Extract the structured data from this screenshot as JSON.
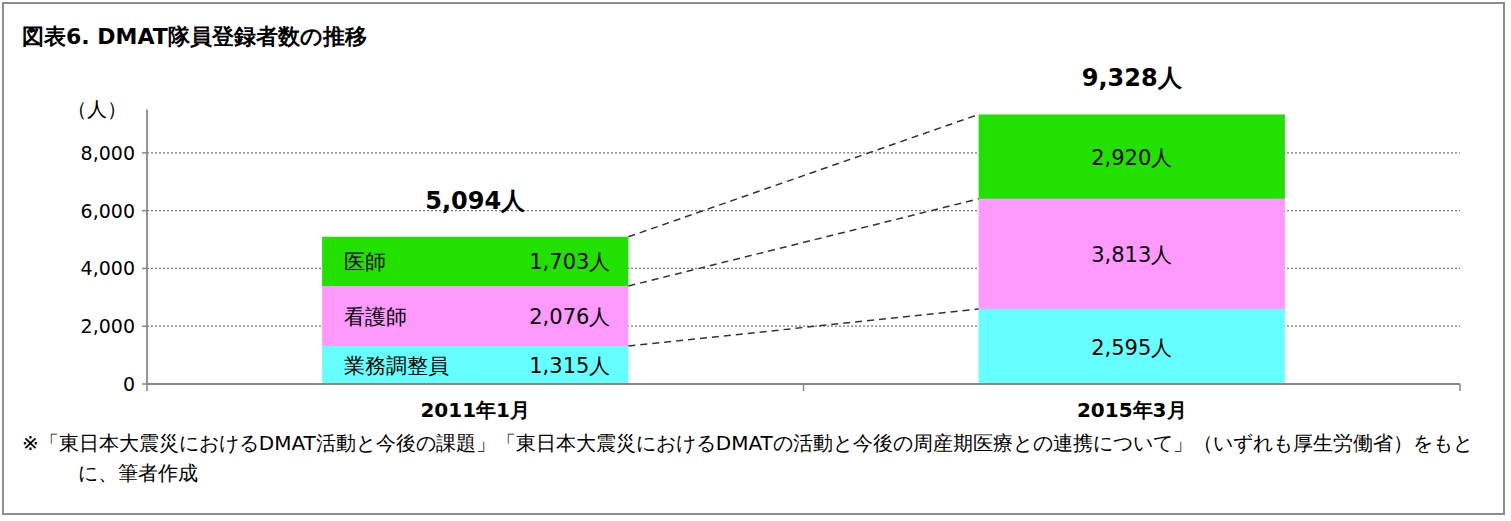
{
  "chart_data": {
    "type": "bar",
    "title": "図表6. DMAT隊員登録者数の推移",
    "y_label": "（人）",
    "categories": [
      "2011年1月",
      "2015年3月"
    ],
    "stacked": true,
    "data_labels": true,
    "grid": true,
    "series": [
      {
        "name": "業務調整員",
        "color": "#66ffff",
        "values": [
          1315,
          2595
        ],
        "value_labels": [
          "1,315人",
          "2,595人"
        ]
      },
      {
        "name": "看護師",
        "color": "#ff99ff",
        "values": [
          2076,
          3813
        ],
        "value_labels": [
          "2,076人",
          "3,813人"
        ]
      },
      {
        "name": "医師",
        "color": "#22e000",
        "values": [
          1703,
          2920
        ],
        "value_labels": [
          "1,703人",
          "2,920人"
        ]
      }
    ],
    "totals": {
      "values": [
        5094,
        9328
      ],
      "value_labels": [
        "5,094人",
        "9,328人"
      ]
    },
    "ylim": [
      0,
      9500
    ],
    "yticks": [
      0,
      {
        "value": 2000,
        "label": "2,000"
      },
      {
        "value": 4000,
        "label": "4,000"
      },
      {
        "value": 6000,
        "label": "6,000"
      },
      {
        "value": 8000,
        "label": "8,000"
      }
    ],
    "source": "※「東日本大震災におけるDMAT活動と今後の課題」「東日本大震災におけるDMATの活動と今後の周産期医療との連携について」（いずれも厚生労働省）をもとに、筆者作成"
  }
}
